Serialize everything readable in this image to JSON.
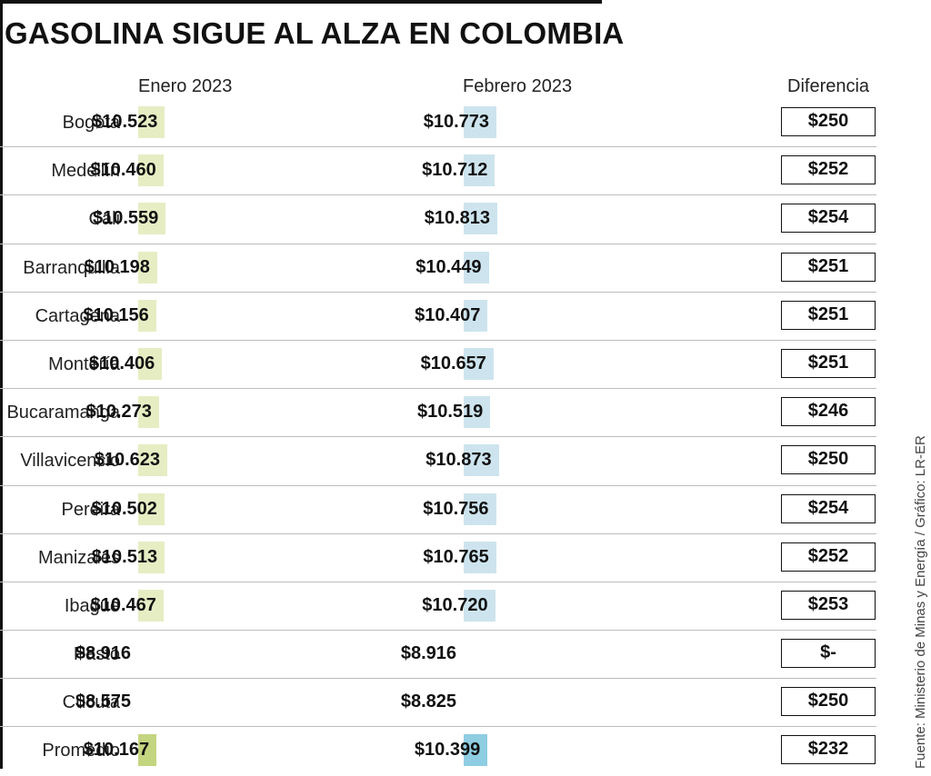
{
  "title": "GASOLINA SIGUE AL ALZA EN COLOMBIA",
  "source": "Fuente: Ministerio de Minas y Energía / Gráfico: LR-ER",
  "columns": {
    "enero": "Enero 2023",
    "febrero": "Febrero 2023",
    "diferencia": "Diferencia"
  },
  "colors": {
    "enero": "#e6edc3",
    "febrero": "#cde4ee",
    "enero_promedio": "#c3d57f",
    "febrero_promedio": "#8ecde2"
  },
  "chart_data": {
    "type": "bar",
    "title": "GASOLINA SIGUE AL ALZA EN COLOMBIA",
    "categories": [
      "Bogotá",
      "Medellín",
      "Cali",
      "Barranquilla",
      "Cartagena",
      "Montería",
      "Bucaramanga",
      "Villavicencio",
      "Pereira",
      "Manizales",
      "Ibagué",
      "Pasto",
      "Cúcuta",
      "Promedio"
    ],
    "series": [
      {
        "name": "Enero 2023",
        "values": [
          10523,
          10460,
          10559,
          10198,
          10156,
          10406,
          10273,
          10623,
          10502,
          10513,
          10467,
          8916,
          8575,
          10167
        ]
      },
      {
        "name": "Febrero 2023",
        "values": [
          10773,
          10712,
          10813,
          10449,
          10407,
          10657,
          10519,
          10873,
          10756,
          10765,
          10720,
          8916,
          8825,
          10399
        ]
      }
    ],
    "rows": [
      {
        "city": "Bogotá",
        "enero": "$10.523",
        "febrero": "$10.773",
        "diferencia": "$250"
      },
      {
        "city": "Medellín",
        "enero": "$10.460",
        "febrero": "$10.712",
        "diferencia": "$252"
      },
      {
        "city": "Cali",
        "enero": "$10.559",
        "febrero": "$10.813",
        "diferencia": "$254"
      },
      {
        "city": "Barranquilla",
        "enero": "$10.198",
        "febrero": "$10.449",
        "diferencia": "$251"
      },
      {
        "city": "Cartagena",
        "enero": "$10.156",
        "febrero": "$10.407",
        "diferencia": "$251"
      },
      {
        "city": "Montería",
        "enero": "$10.406",
        "febrero": "$10.657",
        "diferencia": "$251"
      },
      {
        "city": "Bucaramanga",
        "enero": "$10.273",
        "febrero": "$10.519",
        "diferencia": "$246"
      },
      {
        "city": "Villavicencio",
        "enero": "$10.623",
        "febrero": "$10.873",
        "diferencia": "$250"
      },
      {
        "city": "Pereira",
        "enero": "$10.502",
        "febrero": "$10.756",
        "diferencia": "$254"
      },
      {
        "city": "Manizales",
        "enero": "$10.513",
        "febrero": "$10.765",
        "diferencia": "$252"
      },
      {
        "city": "Ibagué",
        "enero": "$10.467",
        "febrero": "$10.720",
        "diferencia": "$253"
      },
      {
        "city": "Pasto",
        "enero": "$8.916",
        "febrero": "$8.916",
        "diferencia": "$-"
      },
      {
        "city": "Cúcuta",
        "enero": "$8.575",
        "febrero": "$8.825",
        "diferencia": "$250"
      },
      {
        "city": "Promedio",
        "enero": "$10.167",
        "febrero": "$10.399",
        "diferencia": "$232"
      }
    ]
  }
}
